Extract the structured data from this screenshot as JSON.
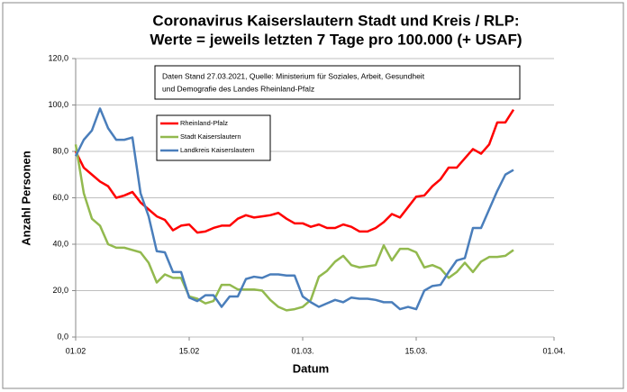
{
  "chart_data": {
    "type": "line",
    "title": [
      "Coronavirus Kaiserslautern Stadt und Kreis / RLP:",
      "Werte = jeweils letzten 7 Tage pro 100.000 (+ USAF)"
    ],
    "annotation": [
      "Daten Stand 27.03.2021, Quelle: Ministerium für Soziales, Arbeit, Gesundheit",
      "und Demografie des Landes Rheinland-Pfalz"
    ],
    "x_label": "Datum",
    "y_label": "Anzahl Personen",
    "x": [
      0,
      1,
      2,
      3,
      4,
      5,
      6,
      7,
      8,
      9,
      10,
      11,
      12,
      13,
      14,
      15,
      16,
      17,
      18,
      19,
      20,
      21,
      22,
      23,
      24,
      25,
      26,
      27,
      28,
      29,
      30,
      31,
      32,
      33,
      34,
      35,
      36,
      37,
      38,
      39,
      40,
      41,
      42,
      43,
      44,
      45,
      46,
      47,
      48,
      49,
      50,
      51,
      52,
      53,
      54
    ],
    "series": [
      {
        "name": "Rheinland-Pfalz",
        "color": "#ff0000",
        "values": [
          80,
          73,
          70,
          67,
          65,
          60,
          61,
          62.5,
          58,
          55,
          52,
          50.5,
          46,
          48,
          48.5,
          45,
          45.5,
          47,
          48,
          48,
          51,
          52.5,
          51.5,
          52,
          52.5,
          53.5,
          51,
          49,
          49,
          47.5,
          48.5,
          47,
          47,
          48.5,
          47.5,
          45.5,
          45.5,
          47,
          49.5,
          53,
          51.5,
          56,
          60.5,
          61,
          65,
          68,
          73,
          73,
          77,
          81,
          79,
          83,
          92.5,
          92.5,
          98
        ]
      },
      {
        "name": "Stadt Kaiserslautern",
        "color": "#92b94e",
        "values": [
          83,
          62,
          51,
          48,
          40,
          38.5,
          38.5,
          37.5,
          36.5,
          32,
          23.5,
          27,
          25.5,
          25.5,
          17.5,
          16.5,
          14.5,
          15.5,
          22.5,
          22.5,
          20.5,
          20.5,
          20.5,
          20,
          16,
          13,
          11.5,
          12,
          13,
          16,
          26,
          28.5,
          32.5,
          35,
          31,
          30,
          30.5,
          31,
          39.5,
          33,
          38,
          38,
          36.5,
          30,
          31,
          29.5,
          25.5,
          28,
          32,
          28,
          32.5,
          34.5,
          34.5,
          35,
          37.5
        ]
      },
      {
        "name": "Landkreis Kaiserslautern",
        "color": "#4a7ebb",
        "values": [
          78,
          85,
          89,
          98.5,
          90,
          85,
          85,
          86,
          62,
          52,
          37,
          36.5,
          28,
          28,
          17,
          15.5,
          18,
          18,
          13,
          17.5,
          17.5,
          25,
          26,
          25.5,
          27,
          27,
          26.5,
          26.5,
          17.5,
          15,
          13,
          14.5,
          16,
          15,
          17,
          16.5,
          16.5,
          16,
          15,
          15,
          12,
          13,
          12,
          20,
          22,
          22.5,
          28,
          33,
          34,
          47,
          47,
          55,
          63,
          70,
          72
        ]
      }
    ],
    "xlim": [
      0,
      59
    ],
    "xticks": [
      {
        "value": 0,
        "label": "01.02"
      },
      {
        "value": 14,
        "label": "15.02"
      },
      {
        "value": 28,
        "label": "01.03."
      },
      {
        "value": 42,
        "label": "15.03."
      },
      {
        "value": 59,
        "label": "01.04."
      }
    ],
    "ylim": [
      0,
      120
    ],
    "yticks": [
      {
        "value": 0,
        "label": "0,0"
      },
      {
        "value": 20,
        "label": "20,0"
      },
      {
        "value": 40,
        "label": "40,0"
      },
      {
        "value": 60,
        "label": "60,0"
      },
      {
        "value": 80,
        "label": "80,0"
      },
      {
        "value": 100,
        "label": "100,0"
      },
      {
        "value": 120,
        "label": "120,0"
      }
    ],
    "grid": true
  }
}
